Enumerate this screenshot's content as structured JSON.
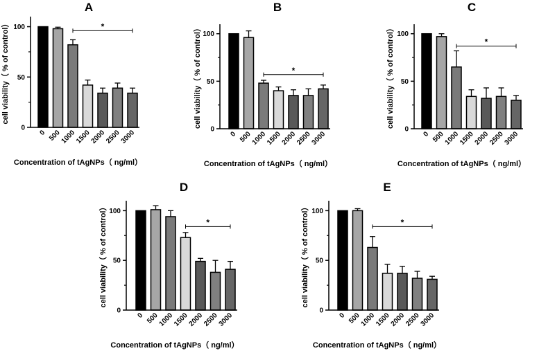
{
  "figure": {
    "colors": {
      "bars": [
        "#000000",
        "#a6a6a6",
        "#7a7a7a",
        "#d9d9d9",
        "#595959",
        "#808080",
        "#666666"
      ],
      "stroke": "#000000"
    }
  },
  "chart_data": [
    {
      "type": "bar",
      "panel": "A",
      "categories": [
        "0",
        "500",
        "1000",
        "1500",
        "2000",
        "2500",
        "3000"
      ],
      "values": [
        100,
        98,
        82,
        42,
        34,
        39,
        34
      ],
      "errors": [
        0,
        1.5,
        5,
        5,
        5,
        5,
        5
      ],
      "xlabel": "Concentration of tAgNPs（ ng/ml）",
      "ylabel": "cell viability（ % of control）",
      "ylim": [
        0,
        110
      ],
      "yticks": [
        "0",
        "50",
        "100"
      ],
      "significance": {
        "from": "1000",
        "to": "3000",
        "label": "*",
        "value": 96
      }
    },
    {
      "type": "bar",
      "panel": "B",
      "categories": [
        "0",
        "500",
        "1000",
        "1500",
        "2000",
        "2500",
        "3000"
      ],
      "values": [
        100,
        96,
        48,
        40,
        35,
        35,
        42
      ],
      "errors": [
        0,
        7,
        3,
        4,
        6,
        7,
        4
      ],
      "xlabel": "Concentration of tAgNPs（ ng/ml）",
      "ylabel": "cell viability（ % of control）",
      "ylim": [
        0,
        110
      ],
      "yticks": [
        "0",
        "50",
        "100"
      ],
      "significance": {
        "from": "1000",
        "to": "3000",
        "label": "*",
        "value": 57
      }
    },
    {
      "type": "bar",
      "panel": "C",
      "categories": [
        "0",
        "500",
        "1000",
        "1500",
        "2000",
        "2500",
        "3000"
      ],
      "values": [
        100,
        97,
        65,
        34,
        32,
        34,
        30
      ],
      "errors": [
        0,
        3,
        17,
        7,
        11,
        9,
        5
      ],
      "xlabel": "Concentration of tAgNPs（ ng/ml）",
      "ylabel": "cell viability（ % of control）",
      "ylim": [
        0,
        110
      ],
      "yticks": [
        "0",
        "50",
        "100"
      ],
      "significance": {
        "from": "1000",
        "to": "3000",
        "label": "*",
        "value": 87
      }
    },
    {
      "type": "bar",
      "panel": "D",
      "categories": [
        "0",
        "500",
        "1000",
        "1500",
        "2000",
        "2500",
        "3000"
      ],
      "values": [
        100,
        101,
        94,
        73,
        49,
        38,
        41
      ],
      "errors": [
        0,
        4,
        6,
        5,
        3,
        12,
        8
      ],
      "xlabel": "Concentration of tAgNPs（ ng/ml）",
      "ylabel": "cell viability（ % of control）",
      "ylim": [
        0,
        110
      ],
      "yticks": [
        "0",
        "50",
        "100"
      ],
      "significance": {
        "from": "1500",
        "to": "3000",
        "label": "*",
        "value": 84
      }
    },
    {
      "type": "bar",
      "panel": "E",
      "categories": [
        "0",
        "500",
        "1000",
        "1500",
        "2000",
        "2500",
        "3000"
      ],
      "values": [
        100,
        100,
        63,
        37,
        37,
        32,
        31
      ],
      "errors": [
        0,
        2,
        11,
        9,
        7,
        7,
        3
      ],
      "xlabel": "Concentration of tAgNPs（ ng/ml）",
      "ylabel": "cell viability（ % of control）",
      "ylim": [
        0,
        110
      ],
      "yticks": [
        "0",
        "50",
        "100"
      ],
      "significance": {
        "from": "1000",
        "to": "3000",
        "label": "*",
        "value": 84
      }
    }
  ]
}
